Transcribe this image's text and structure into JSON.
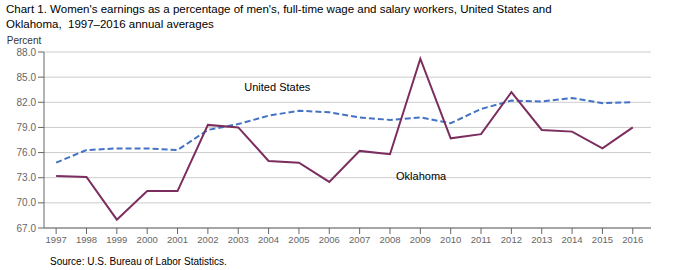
{
  "chart_data": {
    "type": "line",
    "title": "Chart 1. Women's earnings as a percentage of men's, full-time wage and salary workers, United States and",
    "subtitle": "Oklahoma,  1997–2016 annual averages",
    "y_label": "Percent",
    "source": "Source: U.S. Bureau of Labor Statistics.",
    "x": [
      1997,
      1998,
      1999,
      2000,
      2001,
      2002,
      2003,
      2004,
      2005,
      2006,
      2007,
      2008,
      2009,
      2010,
      2011,
      2012,
      2013,
      2014,
      2015,
      2016
    ],
    "series": [
      {
        "name": "United States",
        "color": "#4472C4",
        "line_style": "dashed",
        "values": [
          74.8,
          76.3,
          76.5,
          76.5,
          76.3,
          78.7,
          79.4,
          80.4,
          81.0,
          80.8,
          80.2,
          79.9,
          80.2,
          79.5,
          81.2,
          82.2,
          82.1,
          82.5,
          81.9,
          82.0
        ]
      },
      {
        "name": "Oklahoma",
        "color": "#7B2D5E",
        "line_style": "solid",
        "values": [
          73.2,
          73.1,
          68.0,
          71.4,
          71.4,
          79.3,
          79.0,
          75.0,
          74.8,
          72.5,
          76.2,
          75.8,
          87.2,
          77.7,
          78.2,
          83.2,
          78.7,
          78.5,
          76.5,
          79.0
        ]
      }
    ],
    "annotations": [
      {
        "text": "United States",
        "x": 2003.2,
        "y": 83.0
      },
      {
        "text": "Oklahoma",
        "x": 2008.2,
        "y": 74.2
      }
    ],
    "xlim": [
      1996.6,
      2016.6
    ],
    "xticks": [
      1997,
      1998,
      1999,
      2000,
      2001,
      2002,
      2003,
      2004,
      2005,
      2006,
      2007,
      2008,
      2009,
      2010,
      2011,
      2012,
      2013,
      2014,
      2015,
      2016
    ],
    "ylim": [
      67.0,
      88.0
    ],
    "yticks": [
      {
        "value": 67.0,
        "label": "67.0"
      },
      {
        "value": 70.0,
        "label": "70.0"
      },
      {
        "value": 73.0,
        "label": "73.0"
      },
      {
        "value": 76.0,
        "label": "76.0"
      },
      {
        "value": 79.0,
        "label": "79.0"
      },
      {
        "value": 82.0,
        "label": "82.0"
      },
      {
        "value": 85.0,
        "label": "85.0"
      },
      {
        "value": 88.0,
        "label": "88.0"
      }
    ],
    "grid": true
  }
}
